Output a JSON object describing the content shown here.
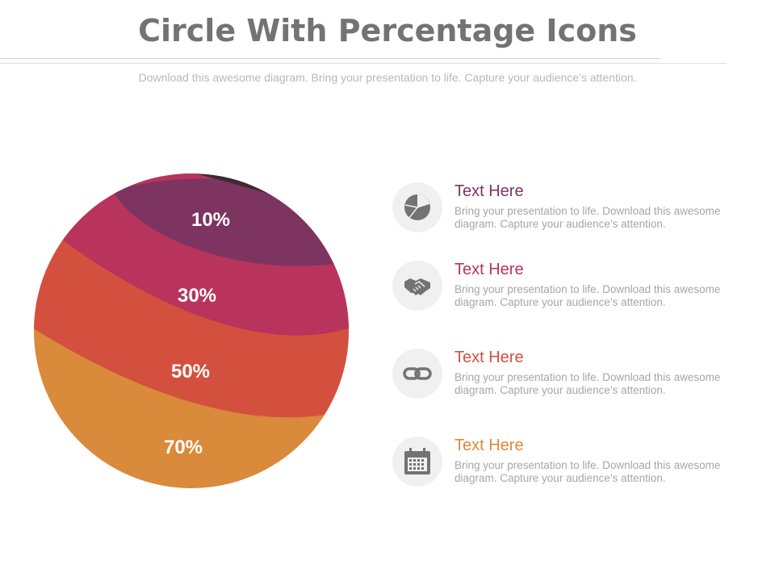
{
  "header": {
    "title": "Circle With Percentage Icons",
    "subtitle": "Download this awesome diagram. Bring your presentation to life. Capture your audience’s attention."
  },
  "sphere": {
    "bands": [
      {
        "label": "10%",
        "color": "#7d3460"
      },
      {
        "label": "30%",
        "color": "#b8345c"
      },
      {
        "label": "50%",
        "color": "#d4503e"
      },
      {
        "label": "70%",
        "color": "#d98a3a"
      }
    ],
    "cap_color": "#3a2a33"
  },
  "items": [
    {
      "title": "Text Here",
      "desc": "Bring your presentation to life. Download this awesome diagram. Capture your audience’s attention.",
      "icon": "pie-chart-icon",
      "color": "#7d3460"
    },
    {
      "title": "Text Here",
      "desc": "Bring your presentation to life. Download this awesome diagram. Capture your audience’s attention.",
      "icon": "handshake-icon",
      "color": "#b8345c"
    },
    {
      "title": "Text Here",
      "desc": "Bring your presentation to life. Download this awesome diagram. Capture your audience’s attention.",
      "icon": "link-icon",
      "color": "#d4503e"
    },
    {
      "title": "Text Here",
      "desc": "Bring your presentation to life. Download this awesome diagram. Capture your audience’s attention.",
      "icon": "calendar-icon",
      "color": "#d98a3a"
    }
  ]
}
